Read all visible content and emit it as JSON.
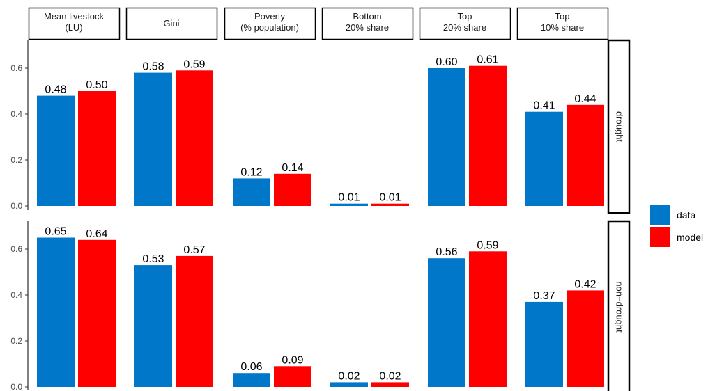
{
  "chart_data": {
    "type": "bar",
    "title": "",
    "xlabel": "",
    "ylabel": "",
    "ylim": [
      0,
      0.7
    ],
    "yticks": [
      "0.0",
      "0.2",
      "0.4",
      "0.6"
    ],
    "yticks_values": [
      0,
      0.2,
      0.4,
      0.6
    ],
    "grid": false,
    "legend_position": "right",
    "column_facets": [
      "Mean livestock\n(LU)",
      "Gini",
      "Poverty\n(% population)",
      "Bottom\n20% share",
      "Top\n20% share",
      "Top\n10% share"
    ],
    "row_facets": [
      "drought",
      "non−drought"
    ],
    "series": [
      {
        "name": "data",
        "color": "#0077c8"
      },
      {
        "name": "model",
        "color": "#ff0000"
      }
    ],
    "panels": [
      {
        "row": "drought",
        "values": {
          "data": [
            0.48,
            0.58,
            0.12,
            0.01,
            0.6,
            0.41
          ],
          "model": [
            0.5,
            0.59,
            0.14,
            0.01,
            0.61,
            0.44
          ]
        },
        "labels": {
          "data": [
            "0.48",
            "0.58",
            "0.12",
            "0.01",
            "0.60",
            "0.41"
          ],
          "model": [
            "0.50",
            "0.59",
            "0.14",
            "0.01",
            "0.61",
            "0.44"
          ]
        }
      },
      {
        "row": "non−drought",
        "values": {
          "data": [
            0.65,
            0.53,
            0.06,
            0.02,
            0.56,
            0.37
          ],
          "model": [
            0.64,
            0.57,
            0.09,
            0.02,
            0.59,
            0.42
          ]
        },
        "labels": {
          "data": [
            "0.65",
            "0.53",
            "0.06",
            "0.02",
            "0.56",
            "0.37"
          ],
          "model": [
            "0.64",
            "0.57",
            "0.09",
            "0.02",
            "0.59",
            "0.42"
          ]
        }
      }
    ]
  }
}
